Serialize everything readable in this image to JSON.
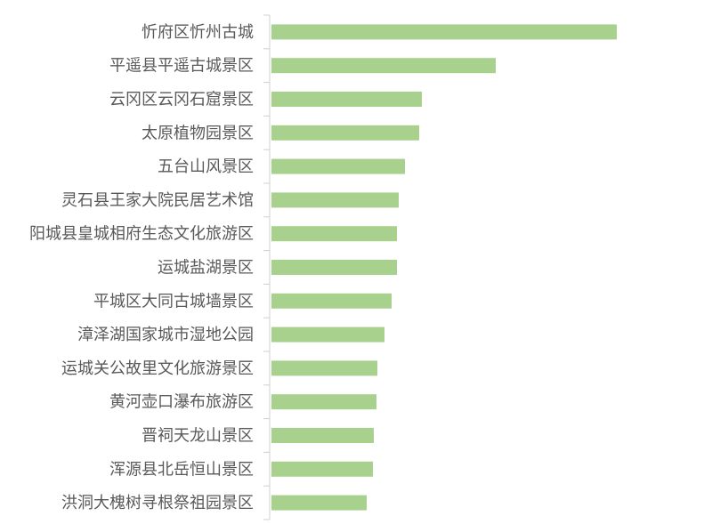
{
  "chart_data": {
    "type": "bar",
    "orientation": "horizontal",
    "title": "",
    "xlabel": "",
    "ylabel": "",
    "grid": false,
    "legend": "none",
    "value_axis_labels_shown": false,
    "bar_color": "#a9d18e",
    "categories": [
      "忻府区忻州古城",
      "平遥县平遥古城景区",
      "云冈区云冈石窟景区",
      "太原植物园景区",
      "五台山风景区",
      "灵石县王家大院民居艺术馆",
      "阳城县皇城相府生态文化旅游区",
      "运城盐湖景区",
      "平城区大同古城墙景区",
      "漳泽湖国家城市湿地公园",
      "运城关公故里文化旅游景区",
      "黄河壶口瀑布旅游区",
      "晋祠天龙山景区",
      "浑源县北岳恒山景区",
      "洪洞大槐树寻根祭祖园景区"
    ],
    "values": [
      388,
      252,
      169,
      166,
      150,
      143,
      141,
      141,
      135,
      127,
      119,
      118,
      115,
      114,
      107
    ],
    "values_note_units": "relative"
  }
}
